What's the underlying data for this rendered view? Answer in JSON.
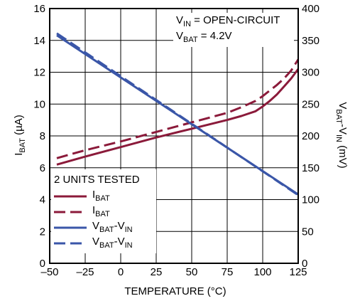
{
  "chart_data": {
    "type": "line",
    "title": "",
    "xlabel": "TEMPERATURE (°C)",
    "ylabel": {
      "main": "I",
      "sub": "BAT",
      "suffix": " (µA)"
    },
    "y2label": {
      "main": "V",
      "sub": "BAT",
      "mid": "-V",
      "sub2": "IN",
      "suffix": " (mV)"
    },
    "xlim": [
      -50,
      125
    ],
    "ylim": [
      0,
      16
    ],
    "y2lim": [
      0,
      400
    ],
    "xticks": [
      -50,
      -25,
      0,
      25,
      50,
      75,
      100,
      125
    ],
    "xtick_labels": [
      "–50",
      "–25",
      "0",
      "25",
      "50",
      "75",
      "100",
      "125"
    ],
    "yticks": [
      0,
      2,
      4,
      6,
      8,
      10,
      12,
      14,
      16
    ],
    "y2ticks": [
      0,
      50,
      100,
      150,
      200,
      250,
      300,
      350,
      400
    ],
    "grid": true,
    "annotations": [
      {
        "main": "V",
        "sub": "IN",
        "rest": " = OPEN-CIRCUIT"
      },
      {
        "main": "V",
        "sub": "BAT",
        "rest": " = 4.2V"
      }
    ],
    "legend": {
      "title": "2 UNITS TESTED",
      "placement": "bottom-left",
      "entries": [
        {
          "main": "I",
          "sub": "BAT",
          "mid": "",
          "sub2": "",
          "color": "#8b1a3a",
          "dash": "solid"
        },
        {
          "main": "I",
          "sub": "BAT",
          "mid": "",
          "sub2": "",
          "color": "#8b1a3a",
          "dash": "dashed"
        },
        {
          "main": "V",
          "sub": "BAT",
          "mid": "-V",
          "sub2": "IN",
          "color": "#3a56a8",
          "dash": "solid"
        },
        {
          "main": "V",
          "sub": "BAT",
          "mid": "-V",
          "sub2": "IN",
          "color": "#3a56a8",
          "dash": "dashed"
        }
      ]
    },
    "series": [
      {
        "axis": "left",
        "color": "#8b1a3a",
        "dash": "solid",
        "x": [
          -45,
          -25,
          0,
          25,
          50,
          75,
          85,
          95,
          100,
          105,
          110,
          115,
          120,
          125
        ],
        "y": [
          6.2,
          6.7,
          7.3,
          7.9,
          8.45,
          9.0,
          9.25,
          9.55,
          9.85,
          10.2,
          10.6,
          11.1,
          11.6,
          12.2
        ]
      },
      {
        "axis": "left",
        "color": "#8b1a3a",
        "dash": "dashed",
        "x": [
          -45,
          -25,
          0,
          25,
          50,
          75,
          85,
          95,
          100,
          105,
          110,
          115,
          120,
          125
        ],
        "y": [
          6.6,
          7.1,
          7.65,
          8.25,
          8.85,
          9.45,
          9.8,
          10.2,
          10.5,
          10.85,
          11.2,
          11.6,
          12.1,
          12.8
        ]
      },
      {
        "axis": "right",
        "color": "#3a56a8",
        "dash": "solid",
        "x": [
          -45,
          125
        ],
        "y": [
          358,
          108
        ]
      },
      {
        "axis": "right",
        "color": "#3a56a8",
        "dash": "dashed",
        "x": [
          -45,
          125
        ],
        "y": [
          361,
          107
        ]
      }
    ]
  }
}
